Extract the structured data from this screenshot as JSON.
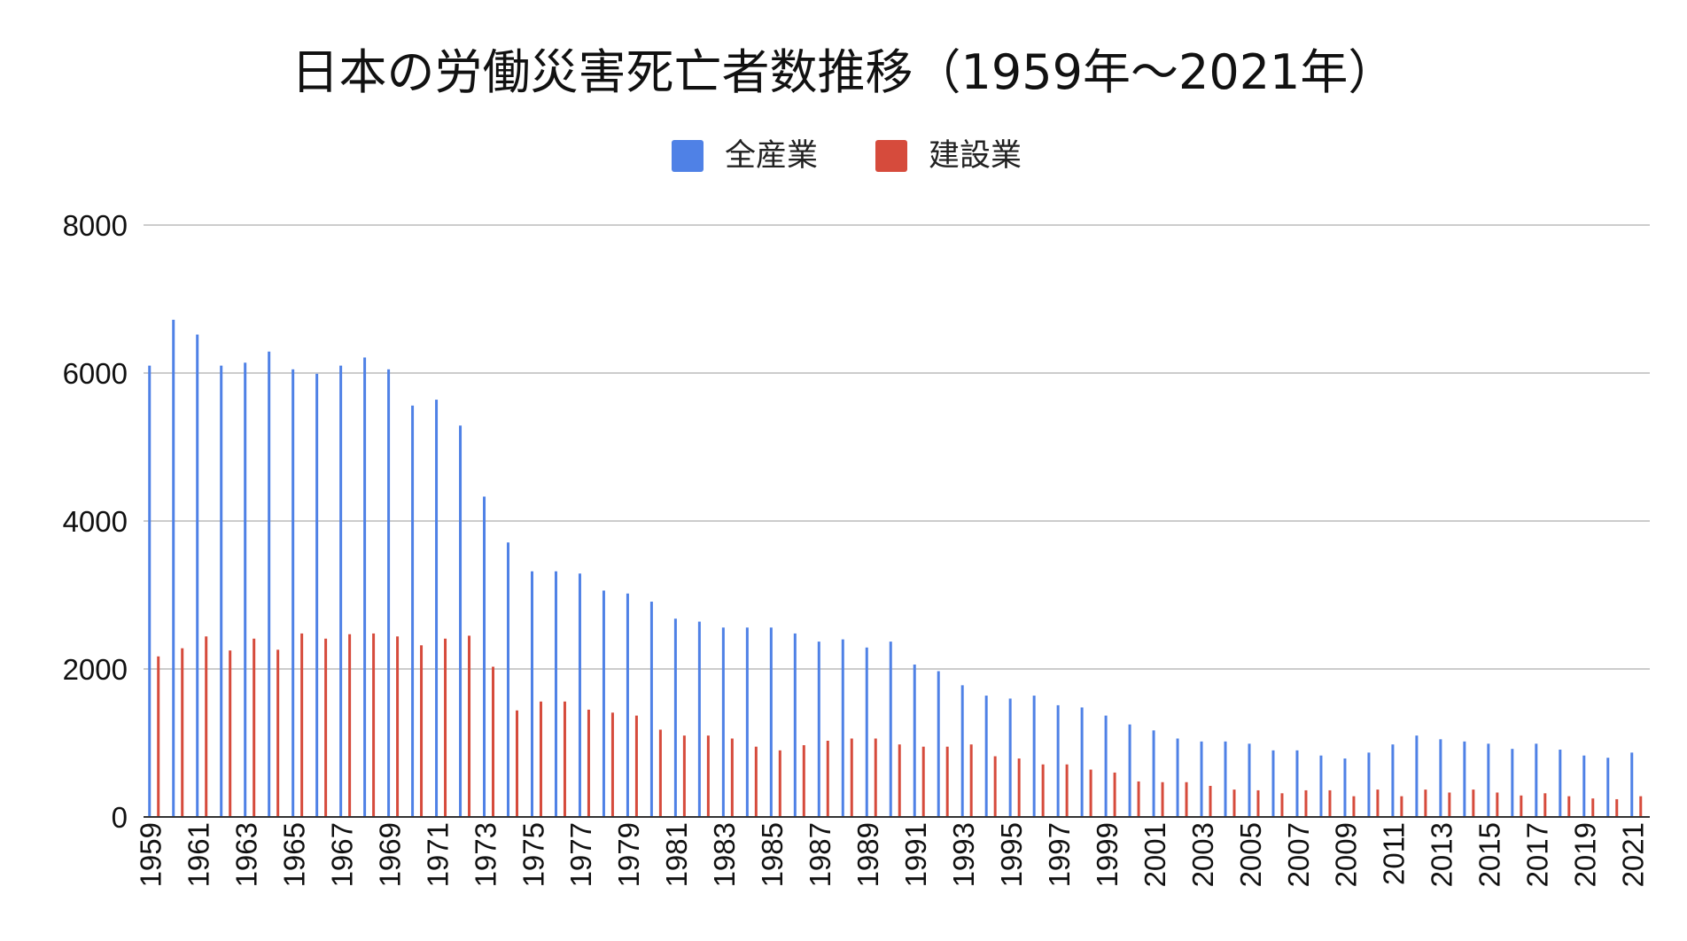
{
  "chart_data": {
    "type": "bar",
    "title": "日本の労働災害死亡者数推移（1959年〜2021年）",
    "xlabel": "",
    "ylabel": "",
    "ylim": [
      0,
      8000
    ],
    "yticks": [
      0,
      2000,
      4000,
      6000,
      8000
    ],
    "grid": true,
    "legend_position": "top-center",
    "categories": [
      1959,
      1960,
      1961,
      1962,
      1963,
      1964,
      1965,
      1966,
      1967,
      1968,
      1969,
      1970,
      1971,
      1972,
      1973,
      1974,
      1975,
      1976,
      1977,
      1978,
      1979,
      1980,
      1981,
      1982,
      1983,
      1984,
      1985,
      1986,
      1987,
      1988,
      1989,
      1990,
      1991,
      1992,
      1993,
      1994,
      1995,
      1996,
      1997,
      1998,
      1999,
      2000,
      2001,
      2002,
      2003,
      2004,
      2005,
      2006,
      2007,
      2008,
      2009,
      2010,
      2011,
      2012,
      2013,
      2014,
      2015,
      2016,
      2017,
      2018,
      2019,
      2020,
      2021
    ],
    "x_tick_labels": [
      "1959",
      "1961",
      "1963",
      "1965",
      "1967",
      "1969",
      "1971",
      "1973",
      "1975",
      "1977",
      "1979",
      "1981",
      "1983",
      "1985",
      "1987",
      "1989",
      "1991",
      "1993",
      "1995",
      "1997",
      "1999",
      "2001",
      "2003",
      "2005",
      "2007",
      "2009",
      "2011",
      "2013",
      "2015",
      "2017",
      "2019",
      "2021"
    ],
    "series": [
      {
        "name": "全産業",
        "color": "#4f81e6",
        "values": [
          6100,
          6720,
          6520,
          6100,
          6140,
          6290,
          6050,
          5990,
          6100,
          6210,
          6050,
          5560,
          5640,
          5290,
          4330,
          3710,
          3320,
          3320,
          3290,
          3060,
          3020,
          2910,
          2680,
          2640,
          2560,
          2560,
          2560,
          2480,
          2370,
          2400,
          2290,
          2370,
          2060,
          1970,
          1780,
          1640,
          1600,
          1640,
          1510,
          1480,
          1370,
          1250,
          1170,
          1060,
          1020,
          1020,
          990,
          900,
          900,
          830,
          790,
          870,
          980,
          1100,
          1050,
          1020,
          990,
          920,
          990,
          910,
          830,
          800,
          870
        ]
      },
      {
        "name": "建設業",
        "color": "#d64b3c",
        "values": [
          2170,
          2280,
          2440,
          2250,
          2410,
          2260,
          2480,
          2410,
          2470,
          2480,
          2440,
          2320,
          2410,
          2450,
          2030,
          1440,
          1560,
          1560,
          1450,
          1410,
          1370,
          1180,
          1100,
          1100,
          1060,
          950,
          900,
          970,
          1030,
          1060,
          1060,
          980,
          950,
          950,
          980,
          820,
          790,
          710,
          710,
          640,
          600,
          480,
          470,
          470,
          420,
          370,
          360,
          320,
          360,
          360,
          280,
          370,
          280,
          370,
          330,
          370,
          330,
          290,
          320,
          280,
          250,
          240,
          280
        ]
      }
    ]
  }
}
